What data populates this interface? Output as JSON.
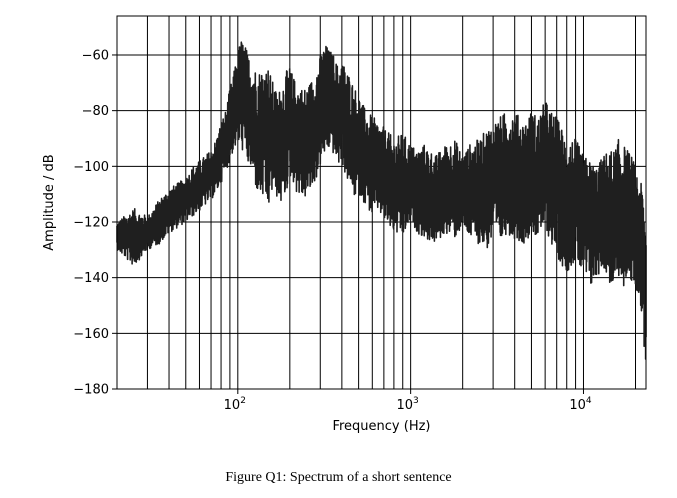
{
  "caption": "Figure Q1: Spectrum of a short sentence",
  "chart_data": {
    "type": "line",
    "title": "",
    "xlabel": "Frequency (Hz)",
    "ylabel": "Amplitude / dB",
    "xscale": "log",
    "xlim": [
      20,
      23000
    ],
    "ylim": [
      -180,
      -46
    ],
    "yticks": [
      -60,
      -80,
      -100,
      -120,
      -140,
      -160,
      -180
    ],
    "ytick_labels": [
      "−60",
      "−80",
      "−100",
      "−120",
      "−140",
      "−160",
      "−180"
    ],
    "xticks": [
      {
        "value": 100,
        "base": "10",
        "exp": "2"
      },
      {
        "value": 1000,
        "base": "10",
        "exp": "3"
      },
      {
        "value": 10000,
        "base": "10",
        "exp": "4"
      }
    ],
    "grid": true,
    "line_color": "#1f1f1f",
    "series": [
      {
        "x": [
          20,
          25,
          30,
          35,
          40,
          45,
          50,
          55,
          60,
          65,
          70,
          75,
          80,
          85,
          90,
          95,
          100,
          105,
          110,
          115,
          120,
          130,
          140,
          150,
          160,
          170,
          180,
          190,
          200,
          210,
          220,
          240,
          260,
          280,
          300,
          320,
          340,
          360,
          380,
          400,
          420,
          450,
          480,
          500,
          550,
          600,
          650,
          700,
          750,
          800,
          900,
          1000,
          1100,
          1200,
          1400,
          1600,
          1800,
          2000,
          2200,
          2500,
          2800,
          3000,
          3300,
          3600,
          4000,
          4500,
          5000,
          5500,
          6000,
          6500,
          7000,
          7500,
          8000,
          9000,
          10000,
          11000,
          12000,
          13000,
          14000,
          15000,
          16000,
          17000,
          18000,
          19000,
          20000,
          21000,
          22000,
          23000
        ],
        "upper": [
          -120,
          -115,
          -118,
          -112,
          -108,
          -106,
          -104,
          -100,
          -98,
          -96,
          -94,
          -90,
          -84,
          -80,
          -72,
          -66,
          -58,
          -54,
          -56,
          -60,
          -62,
          -66,
          -64,
          -64,
          -70,
          -74,
          -70,
          -66,
          -64,
          -68,
          -70,
          -72,
          -70,
          -66,
          -60,
          -56,
          -58,
          -60,
          -64,
          -62,
          -64,
          -68,
          -72,
          -74,
          -80,
          -82,
          -84,
          -86,
          -88,
          -90,
          -88,
          -92,
          -94,
          -92,
          -96,
          -92,
          -90,
          -96,
          -92,
          -90,
          -86,
          -84,
          -82,
          -80,
          -80,
          -84,
          -80,
          -82,
          -76,
          -80,
          -82,
          -86,
          -90,
          -90,
          -96,
          -98,
          -100,
          -96,
          -94,
          -94,
          -90,
          -92,
          -94,
          -96,
          -100,
          -104,
          -108,
          -120
        ],
        "lower": [
          -130,
          -136,
          -130,
          -128,
          -124,
          -122,
          -120,
          -118,
          -116,
          -114,
          -112,
          -110,
          -106,
          -102,
          -98,
          -94,
          -92,
          -94,
          -96,
          -100,
          -102,
          -110,
          -112,
          -116,
          -108,
          -112,
          -114,
          -110,
          -104,
          -106,
          -110,
          -112,
          -110,
          -106,
          -100,
          -96,
          -94,
          -96,
          -100,
          -98,
          -104,
          -108,
          -112,
          -110,
          -114,
          -118,
          -116,
          -120,
          -122,
          -124,
          -126,
          -120,
          -124,
          -126,
          -128,
          -124,
          -126,
          -122,
          -126,
          -128,
          -130,
          -126,
          -128,
          -124,
          -126,
          -128,
          -124,
          -126,
          -122,
          -128,
          -132,
          -136,
          -138,
          -134,
          -140,
          -144,
          -140,
          -136,
          -142,
          -144,
          -140,
          -146,
          -138,
          -142,
          -144,
          -146,
          -160,
          -172
        ]
      }
    ]
  }
}
